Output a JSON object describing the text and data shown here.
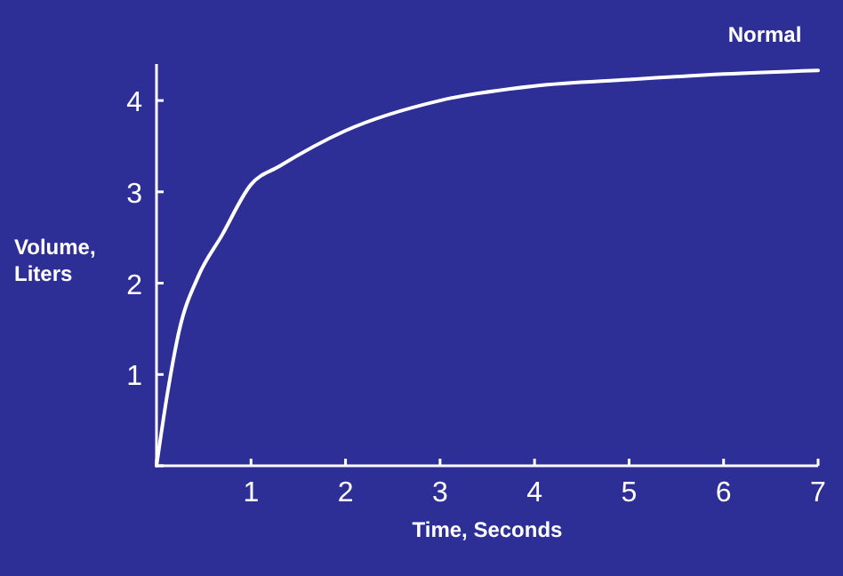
{
  "chart_data": {
    "type": "line",
    "xlabel": "Time, Seconds",
    "ylabel": "Volume, Liters",
    "xlim": [
      0,
      7
    ],
    "ylim": [
      0,
      4.4
    ],
    "xticks": [
      {
        "value": 0,
        "label": null
      },
      1,
      2,
      3,
      4,
      5,
      6,
      7
    ],
    "yticks": [
      {
        "value": 0,
        "label": null
      },
      1,
      2,
      3,
      4
    ],
    "grid": false,
    "legend": false,
    "marker": "none",
    "line_style": "solid",
    "series": [
      {
        "name": "Normal",
        "color": "#ffffff",
        "x": [
          0,
          0.12,
          0.24,
          0.44,
          0.69,
          1,
          1.3,
          2,
          3,
          4,
          5,
          6,
          7
        ],
        "values": [
          0,
          0.82,
          1.48,
          2.07,
          2.52,
          3.08,
          3.28,
          3.67,
          4.0,
          4.16,
          4.23,
          4.29,
          4.33
        ]
      }
    ]
  }
}
